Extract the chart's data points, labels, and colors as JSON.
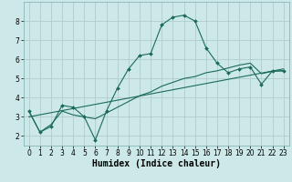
{
  "xlabel": "Humidex (Indice chaleur)",
  "bg_color": "#cce8e8",
  "grid_color": "#b0cccc",
  "line_color": "#1a6b5a",
  "line1_x": [
    0,
    1,
    2,
    3,
    4,
    5,
    6,
    7,
    8,
    9,
    10,
    11,
    12,
    13,
    14,
    15,
    16,
    17,
    18,
    19,
    20,
    21,
    22,
    23
  ],
  "line1_y": [
    3.3,
    2.2,
    2.5,
    3.6,
    3.5,
    3.0,
    1.8,
    3.3,
    4.5,
    5.5,
    6.2,
    6.3,
    7.8,
    8.2,
    8.3,
    8.0,
    6.6,
    5.8,
    5.3,
    5.5,
    5.6,
    4.7,
    5.4,
    5.4
  ],
  "line2_x": [
    0,
    1,
    2,
    3,
    4,
    5,
    6,
    7,
    8,
    9,
    10,
    11,
    12,
    13,
    14,
    15,
    16,
    17,
    18,
    19,
    20,
    21,
    22,
    23
  ],
  "line2_y": [
    3.3,
    2.2,
    2.6,
    3.3,
    3.1,
    3.0,
    2.9,
    3.2,
    3.5,
    3.8,
    4.1,
    4.3,
    4.6,
    4.8,
    5.0,
    5.1,
    5.3,
    5.4,
    5.55,
    5.7,
    5.8,
    5.25,
    5.38,
    5.4
  ],
  "line3_x": [
    0,
    23
  ],
  "line3_y": [
    3.0,
    5.5
  ],
  "ylim": [
    1.5,
    9.0
  ],
  "xlim": [
    -0.5,
    23.5
  ],
  "xticks": [
    0,
    1,
    2,
    3,
    4,
    5,
    6,
    7,
    8,
    9,
    10,
    11,
    12,
    13,
    14,
    15,
    16,
    17,
    18,
    19,
    20,
    21,
    22,
    23
  ],
  "yticks": [
    2,
    3,
    4,
    5,
    6,
    7,
    8
  ],
  "tick_fontsize": 5.5,
  "label_fontsize": 7.0
}
